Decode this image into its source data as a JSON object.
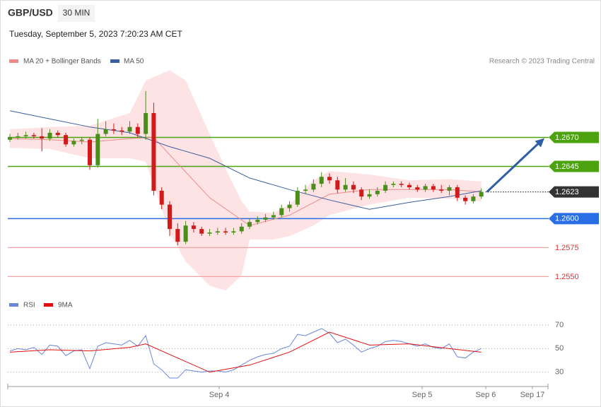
{
  "chart_data": {
    "type": "candlestick",
    "title": "GBP/USD",
    "interval": "30 MIN",
    "subtitle": "Tuesday, September 5, 2023 7:20:23 AM CET",
    "credit": "Research © 2023 Trading Central",
    "ylim": [
      1.2535,
      1.273
    ],
    "up_color": "#4a8f1c",
    "down_color": "#d11a1a",
    "candles": {
      "open": [
        1.2668,
        1.267,
        1.2671,
        1.2672,
        1.2671,
        1.2669,
        1.2674,
        1.2672,
        1.2664,
        1.2667,
        1.2668,
        1.2646,
        1.2673,
        1.2677,
        1.2676,
        1.2675,
        1.2679,
        1.2673,
        1.2691,
        1.2624,
        1.2612,
        1.2591,
        1.258,
        1.2594,
        1.2591,
        1.2587,
        1.2588,
        1.2589,
        1.2588,
        1.2589,
        1.2593,
        1.2597,
        1.2599,
        1.2601,
        1.2603,
        1.2609,
        1.2612,
        1.2624,
        1.2625,
        1.263,
        1.2636,
        1.2633,
        1.2625,
        1.2629,
        1.2625,
        1.2619,
        1.2621,
        1.2624,
        1.2629,
        1.263,
        1.2629,
        1.2627,
        1.2625,
        1.2628,
        1.2625,
        1.2624,
        1.2627,
        1.2618,
        1.2615,
        1.2619
      ],
      "high": [
        1.2673,
        1.2674,
        1.2675,
        1.2674,
        1.2678,
        1.2677,
        1.2676,
        1.2674,
        1.2669,
        1.267,
        1.267,
        1.2686,
        1.2684,
        1.2682,
        1.2679,
        1.2684,
        1.2682,
        1.271,
        1.27,
        1.2627,
        1.2615,
        1.2596,
        1.2598,
        1.2597,
        1.2593,
        1.2591,
        1.2592,
        1.2592,
        1.2592,
        1.2596,
        1.26,
        1.2602,
        1.2604,
        1.2606,
        1.2612,
        1.2615,
        1.2627,
        1.2629,
        1.2634,
        1.264,
        1.2639,
        1.2636,
        1.2635,
        1.2632,
        1.2627,
        1.2625,
        1.2627,
        1.2632,
        1.2632,
        1.2632,
        1.2631,
        1.2629,
        1.263,
        1.263,
        1.2629,
        1.2629,
        1.2629,
        1.262,
        1.2621,
        1.2626
      ],
      "low": [
        1.2666,
        1.2668,
        1.2669,
        1.2669,
        1.2658,
        1.2667,
        1.267,
        1.2662,
        1.2662,
        1.2664,
        1.2642,
        1.2644,
        1.2671,
        1.2673,
        1.2672,
        1.2673,
        1.267,
        1.2668,
        1.262,
        1.2608,
        1.2585,
        1.2577,
        1.2578,
        1.2588,
        1.2585,
        1.2585,
        1.2586,
        1.2586,
        1.2586,
        1.2587,
        1.2591,
        1.2595,
        1.2597,
        1.2599,
        1.2601,
        1.2606,
        1.261,
        1.2621,
        1.2623,
        1.2627,
        1.263,
        1.2622,
        1.2623,
        1.2622,
        1.2616,
        1.2617,
        1.2619,
        1.2622,
        1.2627,
        1.2627,
        1.2625,
        1.2623,
        1.2623,
        1.2623,
        1.2622,
        1.262,
        1.2615,
        1.2612,
        1.2613,
        1.2617
      ],
      "close": [
        1.267,
        1.2671,
        1.2672,
        1.2671,
        1.2669,
        1.2674,
        1.2672,
        1.2664,
        1.2667,
        1.2668,
        1.2646,
        1.2673,
        1.2677,
        1.2676,
        1.2675,
        1.2679,
        1.2673,
        1.2691,
        1.2624,
        1.2612,
        1.2591,
        1.258,
        1.2594,
        1.2591,
        1.2587,
        1.2588,
        1.2589,
        1.2588,
        1.2589,
        1.2593,
        1.2597,
        1.2599,
        1.2601,
        1.2603,
        1.2609,
        1.2612,
        1.2624,
        1.2625,
        1.263,
        1.2636,
        1.2633,
        1.2625,
        1.2629,
        1.2625,
        1.2619,
        1.2621,
        1.2624,
        1.2629,
        1.263,
        1.2629,
        1.2627,
        1.2625,
        1.2628,
        1.2625,
        1.2624,
        1.2627,
        1.2618,
        1.2615,
        1.2619,
        1.2623
      ]
    },
    "bollinger": {
      "name": "MA 20 + Bollinger Bands",
      "color": "#f08a8a",
      "fill": "#fde3e3",
      "x": [
        0,
        5,
        10,
        15,
        17,
        20,
        22,
        25,
        27,
        29,
        30,
        33,
        35,
        38,
        40,
        45,
        50,
        55,
        59
      ],
      "upper": [
        1.2677,
        1.2679,
        1.268,
        1.2691,
        1.2719,
        1.2728,
        1.2719,
        1.2673,
        1.2643,
        1.2615,
        1.2606,
        1.2605,
        1.2612,
        1.2633,
        1.2641,
        1.2638,
        1.2633,
        1.2634,
        1.2632
      ],
      "lower": [
        1.2661,
        1.266,
        1.2652,
        1.2652,
        1.2649,
        1.2588,
        1.2563,
        1.2542,
        1.2538,
        1.2551,
        1.2582,
        1.2582,
        1.2585,
        1.2594,
        1.2603,
        1.2612,
        1.2618,
        1.2617,
        1.2615
      ]
    },
    "series": [
      {
        "name": "MA 20 + Bollinger Bands",
        "color": "#f08a8a",
        "x": [
          0,
          5,
          10,
          15,
          18,
          20,
          25,
          30,
          35,
          40,
          45,
          50,
          55,
          59
        ],
        "values": [
          1.2669,
          1.2668,
          1.2666,
          1.2669,
          1.267,
          1.2655,
          1.2618,
          1.2594,
          1.2603,
          1.2621,
          1.2625,
          1.2625,
          1.2625,
          1.2623
        ]
      },
      {
        "name": "MA 50",
        "color": "#3a5e9e",
        "x": [
          0,
          5,
          10,
          15,
          20,
          25,
          30,
          35,
          40,
          45,
          50,
          55,
          59
        ],
        "values": [
          1.2693,
          1.2686,
          1.2679,
          1.2674,
          1.2662,
          1.2652,
          1.2635,
          1.2625,
          1.2616,
          1.2608,
          1.2614,
          1.2619,
          1.2624
        ]
      }
    ],
    "levels": [
      {
        "value": 1.267,
        "label": "1.2670",
        "color": "#4ca30f",
        "tag": true,
        "style": "solid"
      },
      {
        "value": 1.2645,
        "label": "1.2645",
        "color": "#4ca30f",
        "tag": true,
        "style": "solid"
      },
      {
        "value": 1.2623,
        "label": "1.2623",
        "color": "#333333",
        "tag": true,
        "style": "dotted"
      },
      {
        "value": 1.26,
        "label": "1.2600",
        "color": "#2a6ee6",
        "tag": true,
        "style": "solid"
      },
      {
        "value": 1.2575,
        "label": "1.2575",
        "color": "#f4a3a3",
        "tag": false,
        "style": "solid",
        "text_color": "#e03030"
      },
      {
        "value": 1.255,
        "label": "1.2550",
        "color": "#f4a3a3",
        "tag": false,
        "style": "solid",
        "text_color": "#e03030"
      }
    ],
    "xlabels": [
      "Sep 4",
      "Sep 5",
      "Sep 6",
      "Sep 17"
    ],
    "rsi": {
      "ylim": [
        22,
        76
      ],
      "yticks": [
        30,
        50,
        70
      ],
      "series": [
        {
          "name": "RSI",
          "color": "#6a86dd",
          "values": [
            48,
            50,
            49,
            51,
            45,
            53,
            52,
            44,
            48,
            49,
            33,
            52,
            55,
            54,
            53,
            57,
            52,
            61,
            37,
            32,
            25,
            25,
            32,
            31,
            30,
            31,
            31,
            30,
            32,
            36,
            40,
            43,
            45,
            46,
            50,
            52,
            62,
            61,
            64,
            67,
            63,
            55,
            58,
            53,
            47,
            50,
            52,
            56,
            57,
            56,
            54,
            52,
            54,
            51,
            50,
            54,
            43,
            42,
            47,
            50
          ]
        },
        {
          "name": "9MA",
          "color": "#e01010",
          "x": [
            0,
            5,
            10,
            15,
            17,
            20,
            25,
            30,
            35,
            40,
            45,
            50,
            55,
            59
          ],
          "values": [
            47,
            49,
            48,
            51,
            54,
            45,
            30,
            36,
            47,
            64,
            53,
            54,
            50,
            47
          ]
        }
      ]
    }
  }
}
